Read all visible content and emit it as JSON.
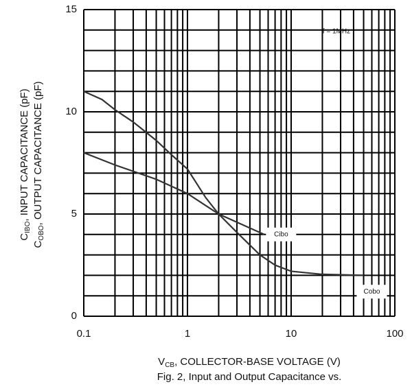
{
  "chart_data": {
    "type": "line",
    "ylabel_lines": [
      {
        "main": "C",
        "sub": "IBO",
        "rest": ", INPUT CAPACITANCE (pF)"
      },
      {
        "main": "C",
        "sub": "OBO",
        "rest": ", OUTPUT CAPACITANCE (pF)"
      }
    ],
    "xlabel": {
      "main": "V",
      "sub": "CB",
      "rest": ", COLLECTOR-BASE VOLTAGE (V)"
    },
    "caption": "Fig. 2, Input and Output Capacitance vs.",
    "annotation": "f = 1MHz",
    "log_x": true,
    "xlim": [
      0.1,
      100
    ],
    "xticks": [
      0.1,
      1,
      10,
      100
    ],
    "xgrid": [
      0.2,
      0.3,
      0.4,
      0.5,
      0.6,
      0.7,
      0.8,
      0.9,
      2,
      3,
      4,
      5,
      6,
      7,
      8,
      9,
      20,
      30,
      40,
      50,
      60,
      70,
      80,
      90
    ],
    "ylim": [
      0,
      15
    ],
    "yticks": [
      0,
      5,
      10,
      15
    ],
    "ygrid": [
      1,
      2,
      3,
      4,
      6,
      7,
      8,
      9,
      11,
      12,
      13,
      14
    ],
    "series": [
      {
        "name": "Cobo",
        "color": "#333333",
        "x": [
          0.1,
          0.15,
          0.2,
          0.3,
          0.5,
          0.7,
          1,
          1.5,
          2,
          3,
          5,
          7,
          10,
          20,
          50
        ],
        "values": [
          11,
          10.6,
          10.1,
          9.5,
          8.6,
          7.9,
          7.2,
          5.8,
          5.0,
          4.1,
          3.0,
          2.5,
          2.2,
          2.05,
          2.0
        ],
        "label_at": [
          60,
          1.2
        ]
      },
      {
        "name": "Cibo",
        "color": "#333333",
        "x": [
          0.1,
          0.2,
          0.5,
          1,
          2,
          5.5
        ],
        "values": [
          8,
          7.4,
          6.7,
          6,
          5,
          4.0
        ],
        "label_at": [
          8,
          4.0
        ]
      }
    ]
  }
}
